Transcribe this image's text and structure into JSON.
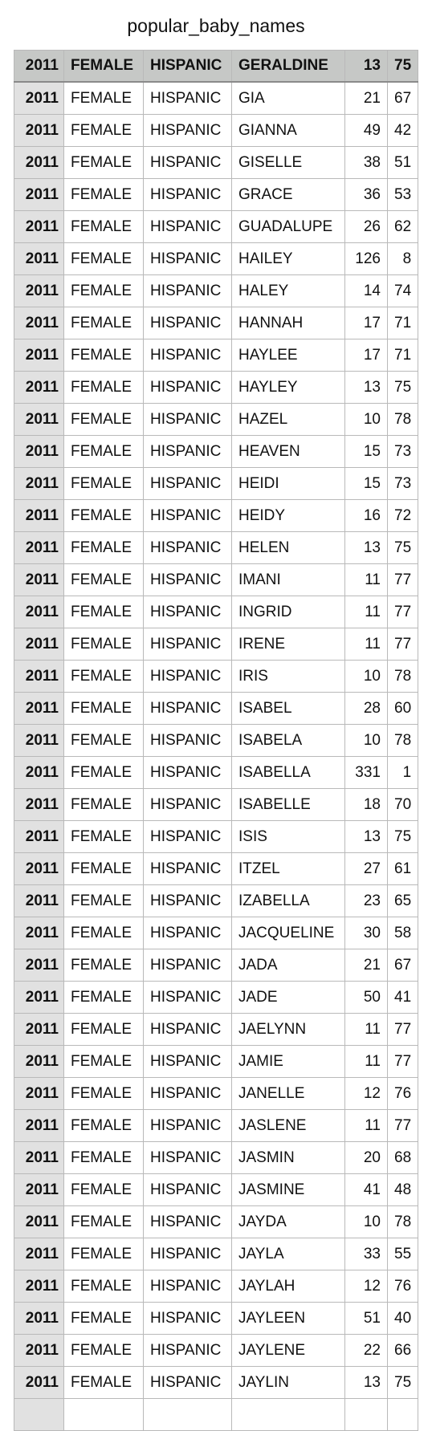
{
  "title": "popular_baby_names",
  "header": [
    "2011",
    "FEMALE",
    "HISPANIC",
    "GERALDINE",
    "13",
    "75"
  ],
  "rows": [
    [
      "2011",
      "FEMALE",
      "HISPANIC",
      "GIA",
      "21",
      "67"
    ],
    [
      "2011",
      "FEMALE",
      "HISPANIC",
      "GIANNA",
      "49",
      "42"
    ],
    [
      "2011",
      "FEMALE",
      "HISPANIC",
      "GISELLE",
      "38",
      "51"
    ],
    [
      "2011",
      "FEMALE",
      "HISPANIC",
      "GRACE",
      "36",
      "53"
    ],
    [
      "2011",
      "FEMALE",
      "HISPANIC",
      "GUADALUPE",
      "26",
      "62"
    ],
    [
      "2011",
      "FEMALE",
      "HISPANIC",
      "HAILEY",
      "126",
      "8"
    ],
    [
      "2011",
      "FEMALE",
      "HISPANIC",
      "HALEY",
      "14",
      "74"
    ],
    [
      "2011",
      "FEMALE",
      "HISPANIC",
      "HANNAH",
      "17",
      "71"
    ],
    [
      "2011",
      "FEMALE",
      "HISPANIC",
      "HAYLEE",
      "17",
      "71"
    ],
    [
      "2011",
      "FEMALE",
      "HISPANIC",
      "HAYLEY",
      "13",
      "75"
    ],
    [
      "2011",
      "FEMALE",
      "HISPANIC",
      "HAZEL",
      "10",
      "78"
    ],
    [
      "2011",
      "FEMALE",
      "HISPANIC",
      "HEAVEN",
      "15",
      "73"
    ],
    [
      "2011",
      "FEMALE",
      "HISPANIC",
      "HEIDI",
      "15",
      "73"
    ],
    [
      "2011",
      "FEMALE",
      "HISPANIC",
      "HEIDY",
      "16",
      "72"
    ],
    [
      "2011",
      "FEMALE",
      "HISPANIC",
      "HELEN",
      "13",
      "75"
    ],
    [
      "2011",
      "FEMALE",
      "HISPANIC",
      "IMANI",
      "11",
      "77"
    ],
    [
      "2011",
      "FEMALE",
      "HISPANIC",
      "INGRID",
      "11",
      "77"
    ],
    [
      "2011",
      "FEMALE",
      "HISPANIC",
      "IRENE",
      "11",
      "77"
    ],
    [
      "2011",
      "FEMALE",
      "HISPANIC",
      "IRIS",
      "10",
      "78"
    ],
    [
      "2011",
      "FEMALE",
      "HISPANIC",
      "ISABEL",
      "28",
      "60"
    ],
    [
      "2011",
      "FEMALE",
      "HISPANIC",
      "ISABELA",
      "10",
      "78"
    ],
    [
      "2011",
      "FEMALE",
      "HISPANIC",
      "ISABELLA",
      "331",
      "1"
    ],
    [
      "2011",
      "FEMALE",
      "HISPANIC",
      "ISABELLE",
      "18",
      "70"
    ],
    [
      "2011",
      "FEMALE",
      "HISPANIC",
      "ISIS",
      "13",
      "75"
    ],
    [
      "2011",
      "FEMALE",
      "HISPANIC",
      "ITZEL",
      "27",
      "61"
    ],
    [
      "2011",
      "FEMALE",
      "HISPANIC",
      "IZABELLA",
      "23",
      "65"
    ],
    [
      "2011",
      "FEMALE",
      "HISPANIC",
      "JACQUELINE",
      "30",
      "58"
    ],
    [
      "2011",
      "FEMALE",
      "HISPANIC",
      "JADA",
      "21",
      "67"
    ],
    [
      "2011",
      "FEMALE",
      "HISPANIC",
      "JADE",
      "50",
      "41"
    ],
    [
      "2011",
      "FEMALE",
      "HISPANIC",
      "JAELYNN",
      "11",
      "77"
    ],
    [
      "2011",
      "FEMALE",
      "HISPANIC",
      "JAMIE",
      "11",
      "77"
    ],
    [
      "2011",
      "FEMALE",
      "HISPANIC",
      "JANELLE",
      "12",
      "76"
    ],
    [
      "2011",
      "FEMALE",
      "HISPANIC",
      "JASLENE",
      "11",
      "77"
    ],
    [
      "2011",
      "FEMALE",
      "HISPANIC",
      "JASMIN",
      "20",
      "68"
    ],
    [
      "2011",
      "FEMALE",
      "HISPANIC",
      "JASMINE",
      "41",
      "48"
    ],
    [
      "2011",
      "FEMALE",
      "HISPANIC",
      "JAYDA",
      "10",
      "78"
    ],
    [
      "2011",
      "FEMALE",
      "HISPANIC",
      "JAYLA",
      "33",
      "55"
    ],
    [
      "2011",
      "FEMALE",
      "HISPANIC",
      "JAYLAH",
      "12",
      "76"
    ],
    [
      "2011",
      "FEMALE",
      "HISPANIC",
      "JAYLEEN",
      "51",
      "40"
    ],
    [
      "2011",
      "FEMALE",
      "HISPANIC",
      "JAYLENE",
      "22",
      "66"
    ],
    [
      "2011",
      "FEMALE",
      "HISPANIC",
      "JAYLIN",
      "13",
      "75"
    ],
    [
      "",
      "",
      "",
      "",
      "",
      ""
    ]
  ]
}
